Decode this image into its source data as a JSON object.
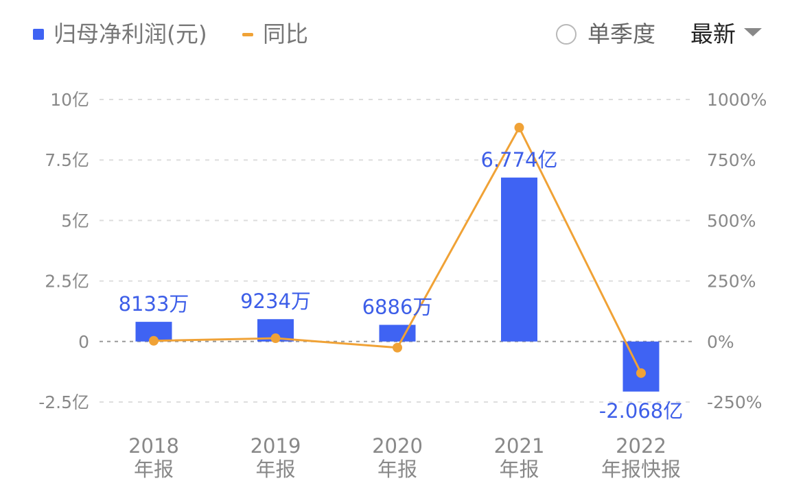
{
  "legend": {
    "profit_label": "归母净利润(元)",
    "yoy_label": "同比"
  },
  "controls": {
    "quarter_label": "单季度",
    "period_label": "最新"
  },
  "colors": {
    "bar": "#3f63f3",
    "line": "#f0a236",
    "label": "#3d5ee8",
    "grid": "#dddddd",
    "zero_line": "#999999"
  },
  "chart_data": {
    "type": "bar",
    "categories": [
      [
        "2018",
        "年报"
      ],
      [
        "2019",
        "年报"
      ],
      [
        "2020",
        "年报"
      ],
      [
        "2021",
        "年报"
      ],
      [
        "2022",
        "年报快报"
      ]
    ],
    "series": [
      {
        "name": "归母净利润(元)",
        "type": "bar",
        "axis": "left",
        "values": [
          81330000,
          92340000,
          68860000,
          677400000,
          -206800000
        ],
        "labels": [
          "8133万",
          "9234万",
          "6886万",
          "6.774亿",
          "-2.068亿"
        ]
      },
      {
        "name": "同比",
        "type": "line",
        "axis": "right",
        "values": [
          3,
          13.5,
          -25.4,
          883.7,
          -130.5
        ]
      }
    ],
    "y_left": {
      "range": [
        -250000000,
        1000000000
      ],
      "ticks": [
        1000000000,
        750000000,
        500000000,
        250000000,
        0,
        -250000000
      ],
      "tick_labels": [
        "10亿",
        "7.5亿",
        "5亿",
        "2.5亿",
        "0",
        "-2.5亿"
      ]
    },
    "y_right": {
      "range": [
        -250,
        1000
      ],
      "ticks": [
        1000,
        750,
        500,
        250,
        0,
        -250
      ],
      "tick_labels": [
        "1000%",
        "750%",
        "500%",
        "250%",
        "0%",
        "-250%"
      ]
    },
    "grid": true,
    "legend_position": "top-left"
  }
}
